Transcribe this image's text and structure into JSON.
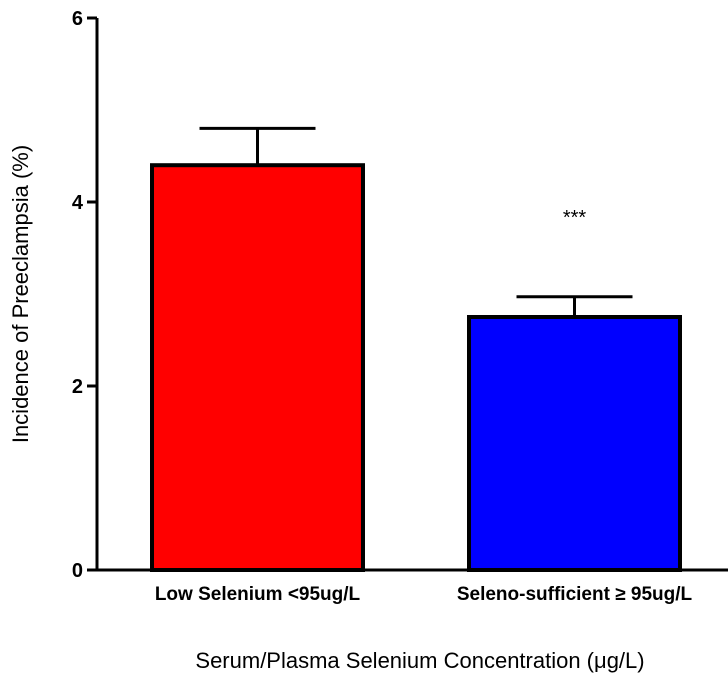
{
  "chart_data": {
    "type": "bar",
    "categories": [
      "Low Selenium <95ug/L",
      "Seleno-sufficient ≥ 95ug/L"
    ],
    "values": [
      4.4,
      2.75
    ],
    "error_upper": [
      0.4,
      0.22
    ],
    "colors": [
      "#ff0000",
      "#0000ff"
    ],
    "annotations": [
      "",
      "***"
    ],
    "xlabel": "Serum/Plasma Selenium Concentration (μg/L)",
    "ylabel": "Incidence of Preeclampsia (%)",
    "ylim": [
      0,
      6
    ],
    "yticks": [
      0,
      2,
      4,
      6
    ],
    "ytick_labels": [
      "0",
      "2",
      "4",
      "6"
    ],
    "grid": false,
    "legend": "none"
  }
}
